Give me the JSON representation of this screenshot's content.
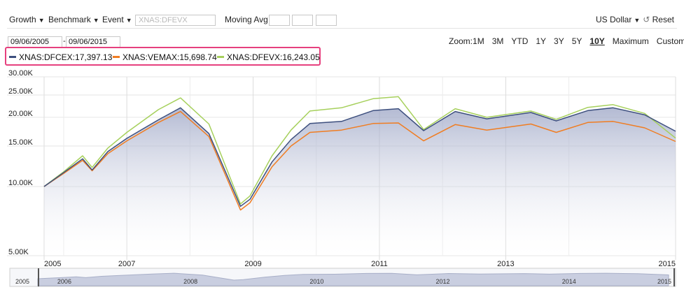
{
  "toolbar": {
    "growth": "Growth",
    "benchmark": "Benchmark",
    "event": "Event",
    "symbol_placeholder": "XNAS:DFEVX",
    "moving_avg": "Moving Avg",
    "currency": "US Dollar",
    "reset": "Reset"
  },
  "date_range": {
    "start": "09/06/2005",
    "separator": "-",
    "end": "09/06/2015"
  },
  "zoom": {
    "label": "Zoom:",
    "options": [
      "1M",
      "3M",
      "YTD",
      "1Y",
      "3Y",
      "5Y",
      "10Y",
      "Maximum",
      "Custom"
    ],
    "active": "10Y"
  },
  "legend": [
    {
      "label": "XNAS:DFCEX:17,397.13",
      "color": "#3d4f7e"
    },
    {
      "label": "XNAS:VEMAX:15,698.74",
      "color": "#f07d22"
    },
    {
      "label": "XNAS:DFEVX:16,243.05",
      "color": "#a6d05c"
    }
  ],
  "chart_data": {
    "type": "line",
    "scale": "log",
    "ylim": [
      5000,
      30000
    ],
    "yticks": [
      "30.00K",
      "25.00K",
      "20.00K",
      "15.00K",
      "10.00K",
      "5.00K"
    ],
    "xticks": [
      "2005",
      "2007",
      "2009",
      "2011",
      "2013",
      "2015"
    ],
    "navigator_ticks": [
      "2005",
      "2006",
      "2008",
      "2010",
      "2012",
      "2014",
      "2015"
    ],
    "series": [
      {
        "name": "XNAS:DFCEX",
        "color": "#3d4f7e",
        "x": [
          2005.69,
          2006.0,
          2006.3,
          2006.45,
          2006.7,
          2007.0,
          2007.5,
          2007.85,
          2008.3,
          2008.8,
          2008.95,
          2009.3,
          2009.6,
          2009.9,
          2010.4,
          2010.9,
          2011.3,
          2011.7,
          2012.2,
          2012.7,
          2013.4,
          2013.8,
          2014.3,
          2014.7,
          2015.2,
          2015.69
        ],
        "values": [
          10000,
          11500,
          13200,
          11800,
          14200,
          16200,
          19500,
          22000,
          17000,
          8200,
          8800,
          12800,
          16000,
          18800,
          19200,
          21400,
          21800,
          17500,
          21200,
          19700,
          21000,
          19300,
          21400,
          22000,
          20500,
          17397
        ]
      },
      {
        "name": "XNAS:VEMAX",
        "color": "#f07d22",
        "x": [
          2005.69,
          2006.0,
          2006.3,
          2006.45,
          2006.7,
          2007.0,
          2007.5,
          2007.85,
          2008.3,
          2008.8,
          2008.95,
          2009.3,
          2009.6,
          2009.9,
          2010.4,
          2010.9,
          2011.3,
          2011.7,
          2012.2,
          2012.7,
          2013.4,
          2013.8,
          2014.3,
          2014.7,
          2015.2,
          2015.69
        ],
        "values": [
          10000,
          11400,
          13000,
          11700,
          13900,
          15800,
          19000,
          21200,
          16500,
          7900,
          8500,
          12200,
          15000,
          17200,
          17600,
          18800,
          18900,
          15800,
          18600,
          17600,
          18700,
          17200,
          19000,
          19200,
          18000,
          15699
        ]
      },
      {
        "name": "XNAS:DFEVX",
        "color": "#a6d05c",
        "x": [
          2005.69,
          2006.0,
          2006.3,
          2006.45,
          2006.7,
          2007.0,
          2007.5,
          2007.85,
          2008.3,
          2008.8,
          2008.95,
          2009.3,
          2009.6,
          2009.9,
          2010.4,
          2010.9,
          2011.3,
          2011.7,
          2012.2,
          2012.7,
          2013.4,
          2013.8,
          2014.3,
          2014.7,
          2015.2,
          2015.69
        ],
        "values": [
          10000,
          11600,
          13600,
          12100,
          14700,
          17200,
          21600,
          24300,
          18700,
          8400,
          9100,
          13600,
          17600,
          21300,
          22000,
          24100,
          24600,
          17700,
          21800,
          20000,
          21300,
          19600,
          22100,
          22700,
          20800,
          16243
        ]
      }
    ]
  }
}
